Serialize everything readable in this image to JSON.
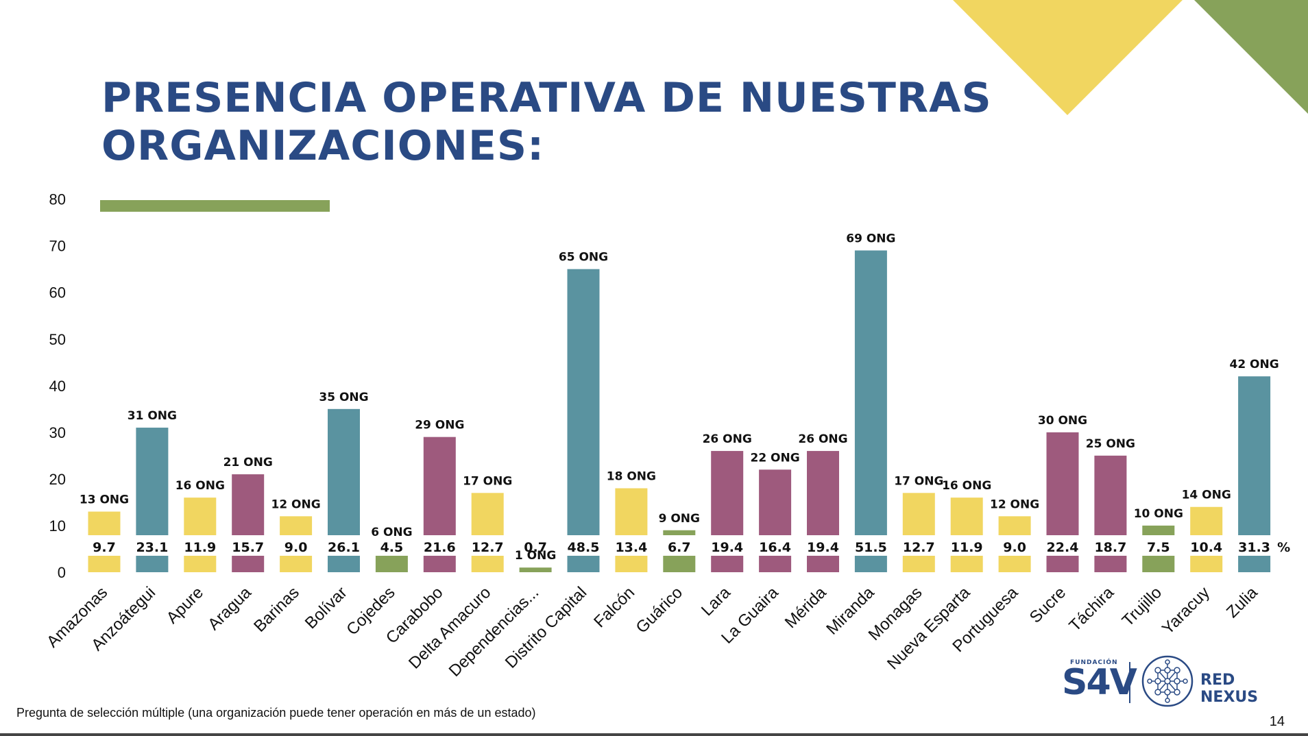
{
  "title_lines": [
    "PRESENCIA OPERATIVA DE NUESTRAS",
    "ORGANIZACIONES:"
  ],
  "footnote": "Pregunta de selección múltiple (una organización puede tener operación en más de un estado)",
  "page_number": "14",
  "logo": {
    "small_text": "FUNDACIÓN",
    "brand": "S4V",
    "partner": "RED NEXUS"
  },
  "colors": {
    "teal": "#5a93a0",
    "yellow": "#f1d660",
    "purple": "#9e5a7d",
    "green": "#87a25a",
    "title": "#2a4a84"
  },
  "chart_data": {
    "type": "bar",
    "yticks": [
      0,
      10,
      20,
      30,
      40,
      50,
      60,
      70,
      80
    ],
    "ylim": [
      0,
      80
    ],
    "grid": false,
    "unit_label": "%",
    "categories": [
      "Amazonas",
      "Anzoátegui",
      "Apure",
      "Aragua",
      "Barinas",
      "Bolívar",
      "Cojedes",
      "Carabobo",
      "Delta Amacuro",
      "Dependencias...",
      "Distrito Capital",
      "Falcón",
      "Guárico",
      "Lara",
      "La Guaira",
      "Mérida",
      "Miranda",
      "Monagas",
      "Nueva Esparta",
      "Portuguesa",
      "Sucre",
      "Táchira",
      "Trujillo",
      "Yaracuy",
      "Zulia"
    ],
    "values": [
      13,
      31,
      16,
      21,
      12,
      35,
      6,
      29,
      17,
      1,
      65,
      18,
      9,
      26,
      22,
      26,
      69,
      17,
      16,
      12,
      30,
      25,
      10,
      14,
      42
    ],
    "value_labels": [
      "13 ONG",
      "31 ONG",
      "16 ONG",
      "21 ONG",
      "12 ONG",
      "35 ONG",
      "6 ONG",
      "29 ONG",
      "17 ONG",
      "1 ONG",
      "65 ONG",
      "18 ONG",
      "9 ONG",
      "26 ONG",
      "22 ONG",
      "26 ONG",
      "69 ONG",
      "17 ONG",
      "16 ONG",
      "12 ONG",
      "30 ONG",
      "25 ONG",
      "10 ONG",
      "14 ONG",
      "42 ONG"
    ],
    "percentages": [
      "9.7",
      "23.1",
      "11.9",
      "15.7",
      "9.0",
      "26.1",
      "4.5",
      "21.6",
      "12.7",
      "0.7",
      "48.5",
      "13.4",
      "6.7",
      "19.4",
      "16.4",
      "19.4",
      "51.5",
      "12.7",
      "11.9",
      "9.0",
      "22.4",
      "18.7",
      "7.5",
      "10.4",
      "31.3"
    ],
    "bar_colors": [
      "#f1d660",
      "#5a93a0",
      "#f1d660",
      "#9e5a7d",
      "#f1d660",
      "#5a93a0",
      "#87a25a",
      "#9e5a7d",
      "#f1d660",
      "#87a25a",
      "#5a93a0",
      "#f1d660",
      "#87a25a",
      "#9e5a7d",
      "#9e5a7d",
      "#9e5a7d",
      "#5a93a0",
      "#f1d660",
      "#f1d660",
      "#f1d660",
      "#9e5a7d",
      "#9e5a7d",
      "#87a25a",
      "#f1d660",
      "#5a93a0"
    ]
  }
}
